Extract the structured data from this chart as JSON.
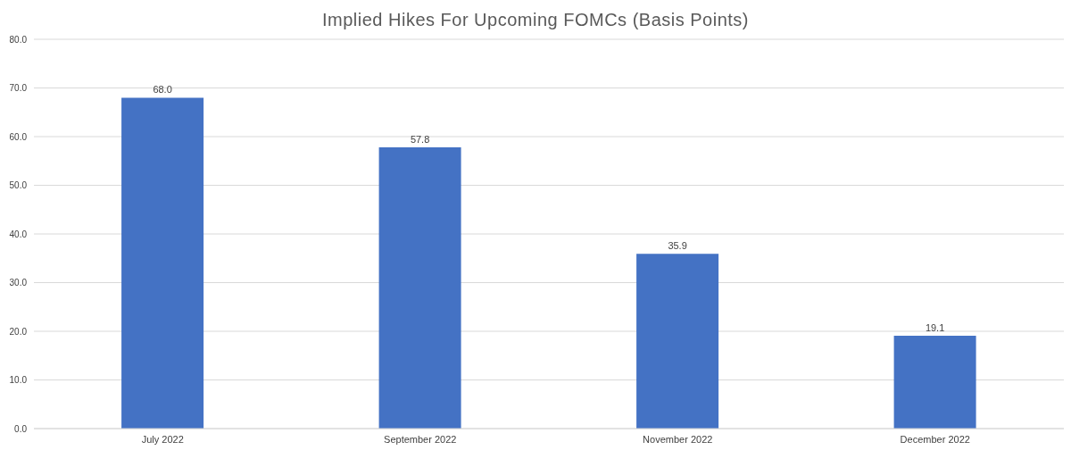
{
  "chart_data": {
    "type": "bar",
    "title": "Implied Hikes For Upcoming FOMCs (Basis Points)",
    "categories": [
      "July 2022",
      "September 2022",
      "November 2022",
      "December 2022"
    ],
    "values": [
      68.0,
      57.8,
      35.9,
      19.1
    ],
    "value_labels": [
      "68.0",
      "57.8",
      "35.9",
      "19.1"
    ],
    "color": "#4472c4",
    "ylim": [
      0,
      80
    ],
    "yticks": [
      {
        "value": 0,
        "label": "0.0"
      },
      {
        "value": 10,
        "label": "10.0"
      },
      {
        "value": 20,
        "label": "20.0"
      },
      {
        "value": 30,
        "label": "30.0"
      },
      {
        "value": 40,
        "label": "40.0"
      },
      {
        "value": 50,
        "label": "50.0"
      },
      {
        "value": 60,
        "label": "60.0"
      },
      {
        "value": 70,
        "label": "70.0"
      },
      {
        "value": 80,
        "label": "80.0"
      }
    ],
    "grid": "y"
  }
}
